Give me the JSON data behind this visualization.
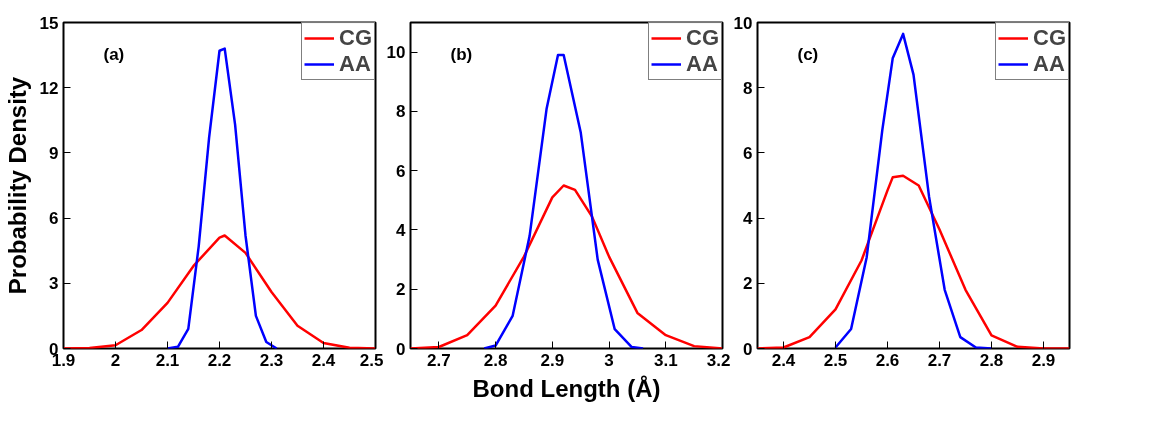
{
  "chart_data": [
    {
      "type": "line",
      "ylabel": "Probability Density",
      "annotations": [
        "(a)"
      ],
      "xlim": [
        1.9,
        2.5
      ],
      "xticks": [
        1.9,
        2,
        2.1,
        2.2,
        2.3,
        2.4,
        2.5
      ],
      "ylim": [
        0,
        15
      ],
      "yticks": [
        0,
        3,
        6,
        9,
        12,
        15
      ],
      "grid": false,
      "legend": "top right",
      "series": [
        {
          "name": "CG",
          "color": "#ff0000",
          "x": [
            1.9,
            1.95,
            2.0,
            2.05,
            2.1,
            2.15,
            2.2,
            2.21,
            2.25,
            2.3,
            2.35,
            2.4,
            2.45,
            2.5
          ],
          "values": [
            0,
            0.02,
            0.15,
            0.85,
            2.1,
            3.8,
            5.1,
            5.2,
            4.4,
            2.6,
            1.05,
            0.25,
            0.03,
            0
          ]
        },
        {
          "name": "AA",
          "color": "#0000ff",
          "x": [
            2.1,
            2.12,
            2.14,
            2.16,
            2.18,
            2.2,
            2.21,
            2.23,
            2.25,
            2.27,
            2.29,
            2.31
          ],
          "values": [
            0,
            0.08,
            0.9,
            4.7,
            9.7,
            13.7,
            13.8,
            10.3,
            5.2,
            1.5,
            0.3,
            0
          ]
        }
      ]
    },
    {
      "type": "line",
      "xlabel": "Bond Length (Å)",
      "annotations": [
        "(b)"
      ],
      "xlim": [
        2.65,
        3.2
      ],
      "xticks": [
        2.7,
        2.8,
        2.9,
        3,
        3.1,
        3.2
      ],
      "ylim": [
        0,
        11
      ],
      "yticks": [
        0,
        2,
        4,
        6,
        8,
        10
      ],
      "grid": false,
      "legend": "top right",
      "series": [
        {
          "name": "CG",
          "color": "#ff0000",
          "x": [
            2.65,
            2.7,
            2.75,
            2.8,
            2.85,
            2.9,
            2.92,
            2.94,
            2.97,
            3.0,
            3.05,
            3.1,
            3.15,
            3.2
          ],
          "values": [
            0,
            0.05,
            0.45,
            1.45,
            3.1,
            5.1,
            5.5,
            5.35,
            4.45,
            3.1,
            1.2,
            0.45,
            0.08,
            0
          ]
        },
        {
          "name": "AA",
          "color": "#0000ff",
          "x": [
            2.78,
            2.8,
            2.83,
            2.86,
            2.89,
            2.91,
            2.92,
            2.95,
            2.98,
            3.01,
            3.04,
            3.06
          ],
          "values": [
            0,
            0.1,
            1.1,
            3.8,
            8.1,
            9.9,
            9.9,
            7.3,
            3.0,
            0.65,
            0.05,
            0
          ]
        }
      ]
    },
    {
      "type": "line",
      "annotations": [
        "(c)"
      ],
      "xlim": [
        2.35,
        2.95
      ],
      "xticks": [
        2.4,
        2.5,
        2.6,
        2.7,
        2.8,
        2.9
      ],
      "ylim": [
        0,
        10
      ],
      "yticks": [
        0,
        2,
        4,
        6,
        8,
        10
      ],
      "grid": false,
      "legend": "top right",
      "series": [
        {
          "name": "CG",
          "color": "#ff0000",
          "x": [
            2.35,
            2.4,
            2.45,
            2.5,
            2.55,
            2.6,
            2.61,
            2.63,
            2.66,
            2.7,
            2.75,
            2.8,
            2.85,
            2.9,
            2.95
          ],
          "values": [
            0,
            0.03,
            0.35,
            1.2,
            2.7,
            4.85,
            5.25,
            5.3,
            5.0,
            3.65,
            1.8,
            0.4,
            0.05,
            0,
            0
          ]
        },
        {
          "name": "AA",
          "color": "#0000ff",
          "x": [
            2.5,
            2.53,
            2.56,
            2.59,
            2.61,
            2.63,
            2.65,
            2.68,
            2.71,
            2.74,
            2.77,
            2.8
          ],
          "values": [
            0.03,
            0.6,
            2.8,
            6.7,
            8.9,
            9.65,
            8.4,
            4.65,
            1.8,
            0.35,
            0.03,
            0
          ]
        }
      ]
    }
  ]
}
